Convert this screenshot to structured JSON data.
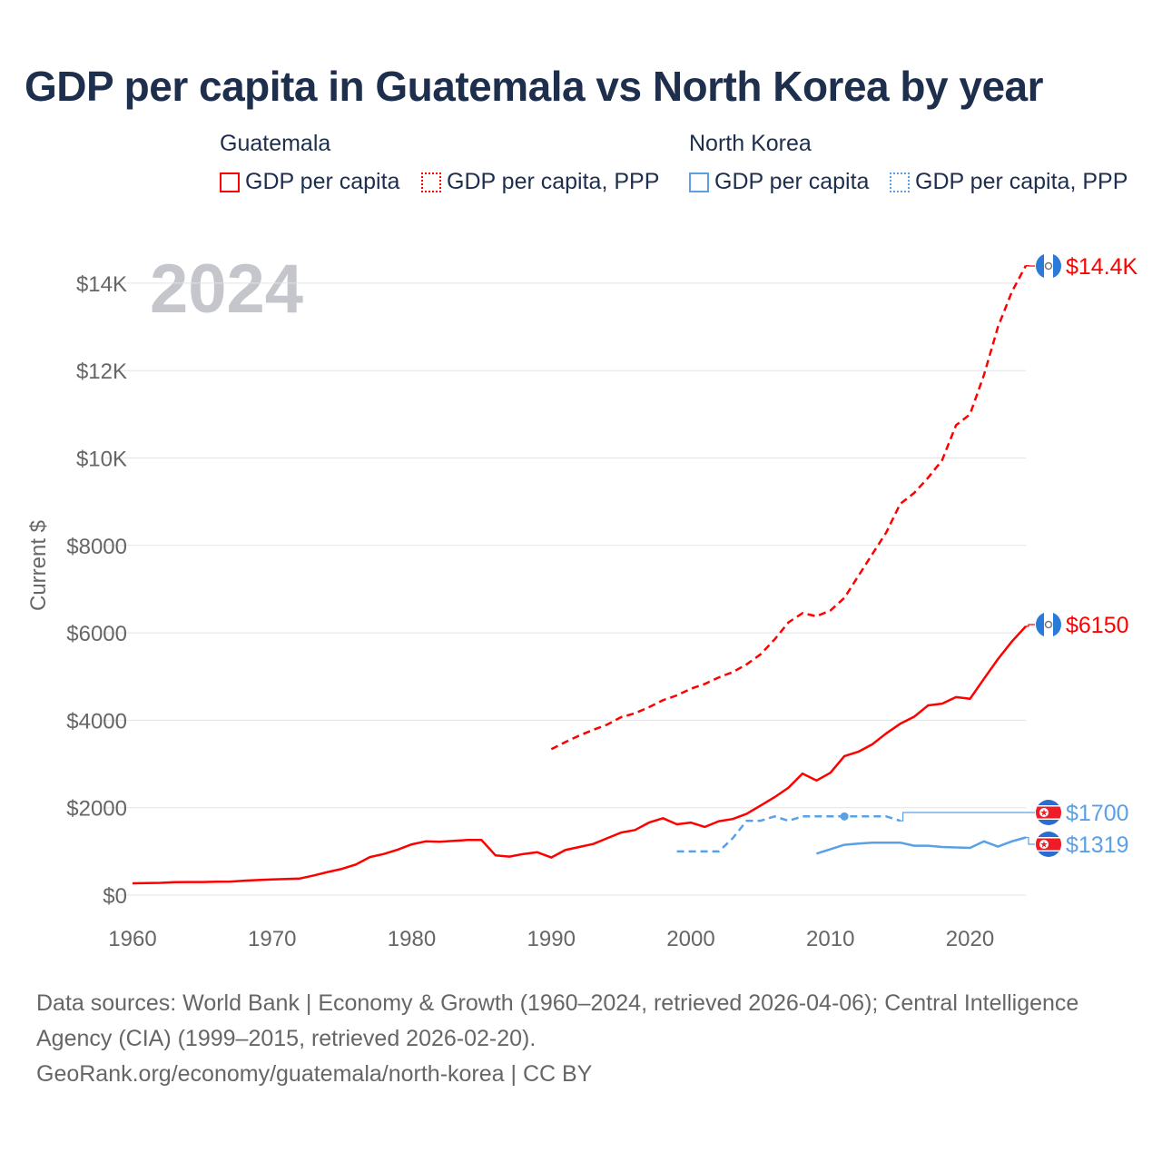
{
  "title": "GDP per capita in Guatemala vs North Korea by year",
  "legend": {
    "groups": [
      {
        "name": "Guatemala",
        "color": "#ff0000",
        "items": [
          "GDP per capita",
          "GDP per capita, PPP"
        ]
      },
      {
        "name": "North Korea",
        "color": "#5aa0e6",
        "items": [
          "GDP per capita",
          "GDP per capita, PPP"
        ]
      }
    ]
  },
  "year_watermark": "2024",
  "chart_data": {
    "type": "line",
    "title": "GDP per capita in Guatemala vs North Korea by year",
    "xlabel": "",
    "ylabel": "Current $",
    "xlim": [
      1960,
      2024
    ],
    "ylim": [
      0,
      15000
    ],
    "x_ticks": [
      1960,
      1970,
      1980,
      1990,
      2000,
      2010,
      2020
    ],
    "x_tick_labels": [
      "1960",
      "1970",
      "1980",
      "1990",
      "2000",
      "2010",
      "2020"
    ],
    "y_ticks": [
      0,
      2000,
      4000,
      6000,
      8000,
      10000,
      12000,
      14000
    ],
    "y_tick_labels": [
      "$0",
      "$2000",
      "$4000",
      "$6000",
      "$8000",
      "$10K",
      "$12K",
      "$14K"
    ],
    "grid": true,
    "series": [
      {
        "name": "Guatemala GDP per capita",
        "country": "Guatemala",
        "color": "#ff0000",
        "dash": "solid",
        "end_label": "$6150",
        "flag": "guatemala-flag",
        "x": [
          1960,
          1961,
          1962,
          1963,
          1964,
          1965,
          1966,
          1967,
          1968,
          1969,
          1970,
          1971,
          1972,
          1973,
          1974,
          1975,
          1976,
          1977,
          1978,
          1979,
          1980,
          1981,
          1982,
          1983,
          1984,
          1985,
          1986,
          1987,
          1988,
          1989,
          1990,
          1991,
          1992,
          1993,
          1994,
          1995,
          1996,
          1997,
          1998,
          1999,
          2000,
          2001,
          2002,
          2003,
          2004,
          2005,
          2006,
          2007,
          2008,
          2009,
          2010,
          2011,
          2012,
          2013,
          2014,
          2015,
          2016,
          2017,
          2018,
          2019,
          2020,
          2021,
          2022,
          2023,
          2024
        ],
        "y": [
          270,
          275,
          280,
          295,
          300,
          300,
          305,
          310,
          330,
          345,
          360,
          370,
          380,
          450,
          530,
          600,
          700,
          870,
          940,
          1040,
          1160,
          1230,
          1220,
          1240,
          1260,
          1260,
          910,
          880,
          940,
          980,
          860,
          1030,
          1100,
          1170,
          1300,
          1430,
          1490,
          1660,
          1760,
          1620,
          1660,
          1560,
          1690,
          1740,
          1860,
          2050,
          2240,
          2460,
          2780,
          2620,
          2800,
          3180,
          3280,
          3450,
          3700,
          3920,
          4080,
          4340,
          4380,
          4530,
          4490,
          4950,
          5400,
          5800,
          6150
        ]
      },
      {
        "name": "Guatemala GDP per capita, PPP",
        "country": "Guatemala",
        "color": "#ff0000",
        "dash": "dashed",
        "end_label": "$14.4K",
        "flag": "guatemala-flag",
        "x": [
          1990,
          1991,
          1992,
          1993,
          1994,
          1995,
          1996,
          1997,
          1998,
          1999,
          2000,
          2001,
          2002,
          2003,
          2004,
          2005,
          2006,
          2007,
          2008,
          2009,
          2010,
          2011,
          2012,
          2013,
          2014,
          2015,
          2016,
          2017,
          2018,
          2019,
          2020,
          2021,
          2022,
          2023,
          2024
        ],
        "y": [
          3340,
          3500,
          3650,
          3780,
          3900,
          4070,
          4160,
          4300,
          4460,
          4570,
          4720,
          4830,
          4980,
          5100,
          5280,
          5510,
          5850,
          6240,
          6450,
          6380,
          6510,
          6800,
          7300,
          7800,
          8300,
          8950,
          9200,
          9550,
          9950,
          10750,
          11000,
          11900,
          13000,
          13800,
          14400
        ]
      },
      {
        "name": "North Korea GDP per capita",
        "country": "North Korea",
        "color": "#5aa0e6",
        "dash": "solid",
        "end_label": "$1319",
        "flag": "north-korea-flag",
        "x": [
          2009,
          2010,
          2011,
          2012,
          2013,
          2014,
          2015,
          2016,
          2017,
          2018,
          2019,
          2020,
          2021,
          2022,
          2023,
          2024
        ],
        "y": [
          950,
          1050,
          1150,
          1180,
          1200,
          1200,
          1200,
          1130,
          1130,
          1100,
          1090,
          1080,
          1230,
          1110,
          1230,
          1319
        ]
      },
      {
        "name": "North Korea GDP per capita, PPP",
        "country": "North Korea",
        "color": "#5aa0e6",
        "dash": "dashed",
        "end_label": "$1700",
        "flag": "north-korea-flag",
        "x": [
          1999,
          2000,
          2001,
          2002,
          2003,
          2004,
          2005,
          2006,
          2007,
          2008,
          2009,
          2010,
          2011,
          2012,
          2013,
          2014,
          2015
        ],
        "y": [
          1000,
          1000,
          1000,
          1000,
          1300,
          1700,
          1700,
          1800,
          1700,
          1800,
          1800,
          1800,
          1800,
          1800,
          1800,
          1800,
          1700
        ],
        "marker_at": 2011
      }
    ]
  },
  "source": {
    "line1": "Data sources: World Bank | Economy & Growth (1960–2024, retrieved 2026-04-06); Central Intelligence Agency (CIA) (1999–2015, retrieved 2026-02-20).",
    "line2": "GeoRank.org/economy/guatemala/north-korea | CC BY"
  }
}
